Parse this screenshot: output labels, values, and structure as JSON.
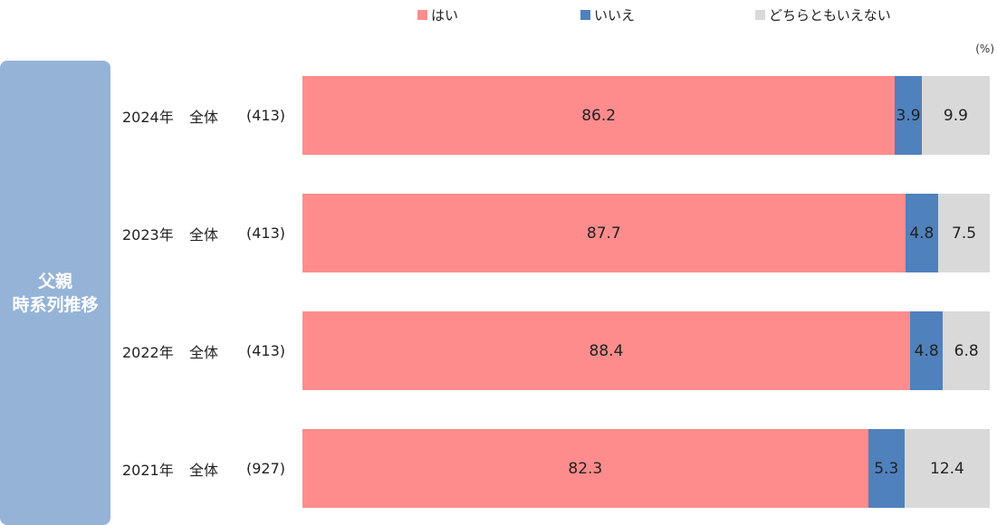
{
  "legend": {
    "items": [
      {
        "label": "はい",
        "color": "#ff8c8c"
      },
      {
        "label": "いいえ",
        "color": "#4f81bd"
      },
      {
        "label": "どちらともいえない",
        "color": "#d9d9d9"
      }
    ]
  },
  "unit_label": "(%)",
  "side_panel": {
    "title": "父親\n時系列推移",
    "color": "#95b3d7"
  },
  "chart_data": {
    "type": "bar",
    "orientation": "horizontal",
    "stacked": true,
    "categories": [
      "2024年",
      "2023年",
      "2022年",
      "2021年"
    ],
    "groups": [
      "全体",
      "全体",
      "全体",
      "全体"
    ],
    "n_labels": [
      "(413)",
      "(413)",
      "(413)",
      "(927)"
    ],
    "series": [
      {
        "name": "はい",
        "values": [
          86.2,
          87.7,
          88.4,
          82.3
        ],
        "color": "#ff8c8c"
      },
      {
        "name": "いいえ",
        "values": [
          3.9,
          4.8,
          4.8,
          5.3
        ],
        "color": "#4f81bd"
      },
      {
        "name": "どちらともいえない",
        "values": [
          9.9,
          7.5,
          6.8,
          12.4
        ],
        "color": "#d9d9d9"
      }
    ],
    "xlim": [
      0,
      100
    ],
    "unit": "(%)",
    "legend_position": "top",
    "grid": false
  }
}
